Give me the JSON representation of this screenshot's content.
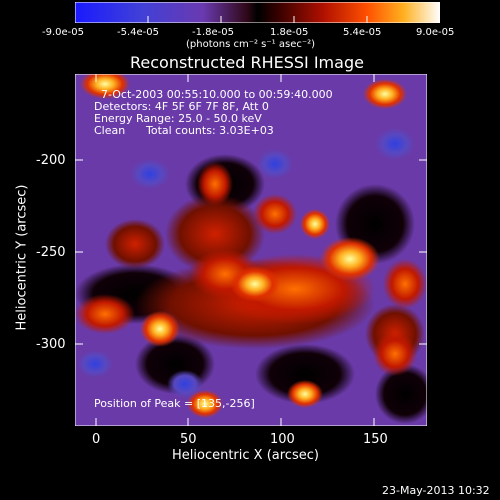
{
  "colorbar": {
    "ticks": [
      "-9.0e-05",
      "-5.4e-05",
      "-1.8e-05",
      "1.8e-05",
      "5.4e-05",
      "9.0e-05"
    ],
    "units": "(photons cm⁻² s⁻¹ asec⁻²)"
  },
  "plot": {
    "title": "Reconstructed RHESSI Image",
    "xlabel": "Heliocentric X (arcsec)",
    "ylabel": "Heliocentric Y (arcsec)",
    "x_ticks": [
      "0",
      "50",
      "100",
      "150"
    ],
    "y_ticks": [
      "-200",
      "-250",
      "-300"
    ],
    "info": {
      "time": "7-Oct-2003 00:55:10.000 to 00:59:40.000",
      "detectors": "Detectors: 4F 5F 6F 7F 8F, Att 0",
      "energy": "Energy Range: 25.0 - 50.0 keV",
      "clean_label": "Clean",
      "counts": "Total counts: 3.03E+03"
    },
    "peak": "Position of Peak = [135,-256]"
  },
  "footer": {
    "date": "23-May-2013 10:32"
  },
  "colors": {
    "background": "#000000",
    "foreground": "#ffffff"
  }
}
